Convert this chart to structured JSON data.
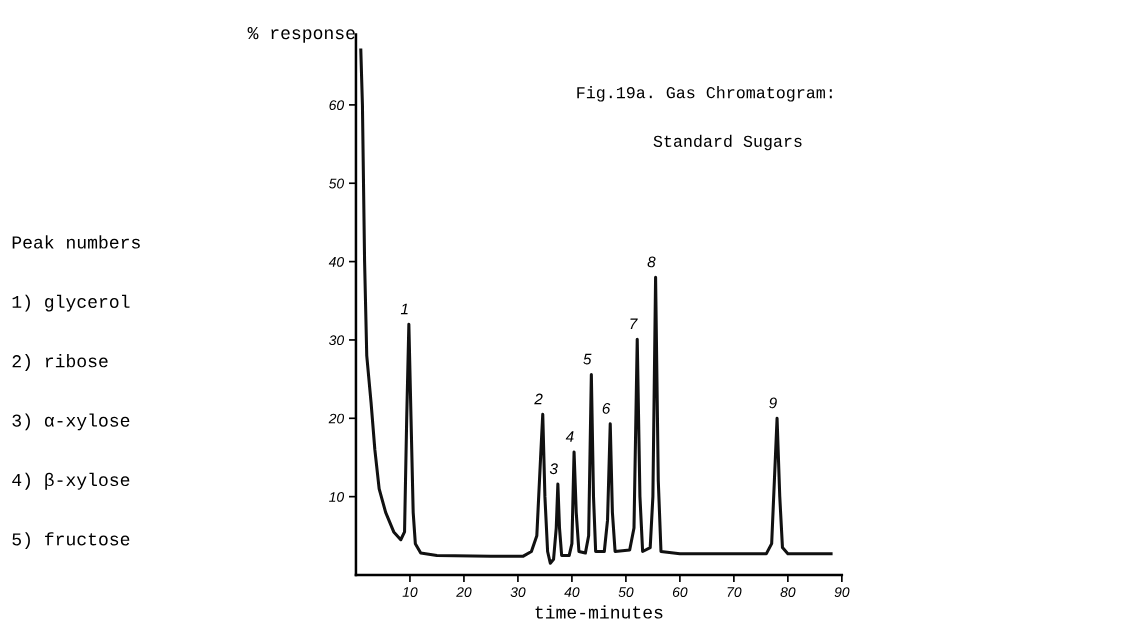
{
  "chart_data": {
    "type": "line",
    "title": "Fig.19a. Gas Chromatogram:",
    "subtitle": "Standard Sugars",
    "xlabel": "time-minutes",
    "ylabel": "% response",
    "x": [
      0.9,
      1.2,
      1.6,
      2.0,
      2.8,
      3.5,
      4.3,
      5.5,
      7,
      8.3,
      9.0,
      9.4,
      9.8,
      10.2,
      10.6,
      11,
      12,
      15,
      25,
      31,
      32.5,
      33.5,
      34.2,
      34.6,
      35.0,
      35.5,
      36,
      36.6,
      37.1,
      37.4,
      37.7,
      38.1,
      39.5,
      40.0,
      40.4,
      40.8,
      41.3,
      42.5,
      43.1,
      43.6,
      44.0,
      44.4,
      46,
      46.6,
      47.1,
      47.5,
      48,
      50.7,
      51.5,
      52.1,
      52.6,
      53.1,
      54.5,
      55.0,
      55.5,
      56.0,
      56.5,
      60,
      76,
      77,
      77.5,
      78,
      78.5,
      79,
      80,
      88
    ],
    "series": [
      {
        "color": "#111111",
        "values": [
          67,
          60,
          40,
          28,
          22,
          16,
          11,
          8,
          5.5,
          4.5,
          5.5,
          20,
          32,
          20,
          8,
          4,
          2.8,
          2.5,
          2.4,
          2.4,
          3,
          5,
          15,
          20.5,
          10,
          3,
          1.5,
          2,
          6,
          11.6,
          6,
          2.5,
          2.5,
          4,
          15.7,
          8,
          3,
          2.8,
          5,
          25.6,
          10,
          3,
          3,
          7,
          19.3,
          8,
          3,
          3.2,
          6,
          30.1,
          10,
          3,
          3.5,
          10,
          38,
          12,
          3,
          2.7,
          2.7,
          4,
          12,
          20,
          10,
          3.5,
          2.7,
          2.7
        ]
      }
    ],
    "xlim": [
      0,
      90
    ],
    "ylim": [
      0,
      69
    ],
    "xticks": [
      10,
      20,
      30,
      40,
      50,
      60,
      70,
      80,
      90
    ],
    "yticks": [
      10,
      20,
      30,
      40,
      50,
      60
    ],
    "grid": false,
    "legend": false,
    "marker": "none",
    "line_style": "solid",
    "annotations": [
      {
        "text": "1",
        "x": 9.8,
        "y": 32
      },
      {
        "text": "2",
        "x": 34.6,
        "y": 20.5
      },
      {
        "text": "3",
        "x": 37.4,
        "y": 11.6
      },
      {
        "text": "4",
        "x": 40.4,
        "y": 15.7
      },
      {
        "text": "5",
        "x": 43.6,
        "y": 25.6
      },
      {
        "text": "6",
        "x": 47.1,
        "y": 19.3
      },
      {
        "text": "7",
        "x": 52.1,
        "y": 30.1
      },
      {
        "text": "8",
        "x": 55.5,
        "y": 38
      },
      {
        "text": "9",
        "x": 78,
        "y": 20
      },
      "Peak numbers",
      "1) glycerol",
      "2) ribose",
      "3) α-xylose",
      "4) β-xylose",
      "5) fructose"
    ]
  }
}
